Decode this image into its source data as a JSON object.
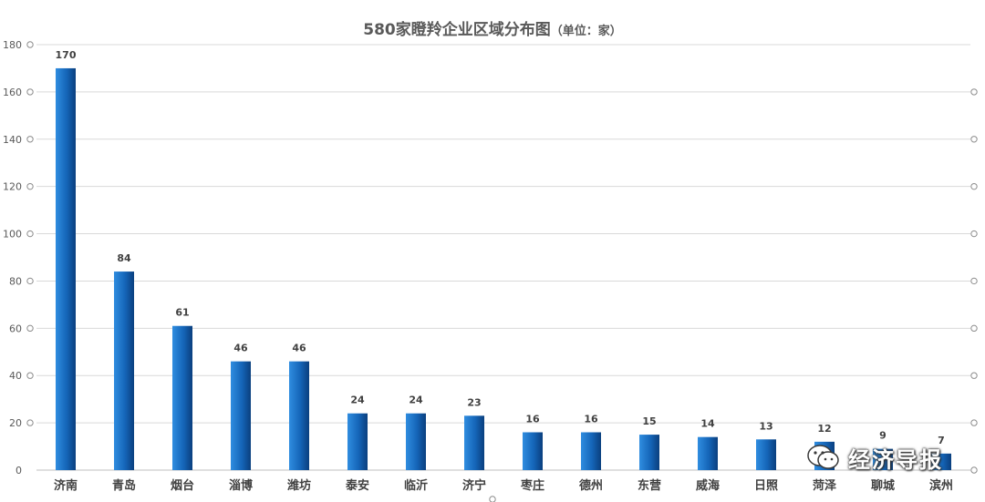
{
  "chart_data": {
    "type": "bar",
    "title": "580家瞪羚企业区域分布图",
    "title_unit": "（单位：家）",
    "categories": [
      "济南",
      "青岛",
      "烟台",
      "淄博",
      "潍坊",
      "泰安",
      "临沂",
      "济宁",
      "枣庄",
      "德州",
      "东营",
      "威海",
      "日照",
      "菏泽",
      "聊城",
      "滨州"
    ],
    "values": [
      170,
      84,
      61,
      46,
      46,
      24,
      24,
      23,
      16,
      16,
      15,
      14,
      13,
      12,
      9,
      7
    ],
    "ylim": [
      0,
      180
    ],
    "yticks": [
      0,
      20,
      40,
      60,
      80,
      100,
      120,
      140,
      160,
      180
    ],
    "grid": true,
    "legend": "none",
    "bar_color": "#1b6fc2"
  },
  "watermark": {
    "text": "经济导报",
    "icon": "wechat-icon"
  }
}
